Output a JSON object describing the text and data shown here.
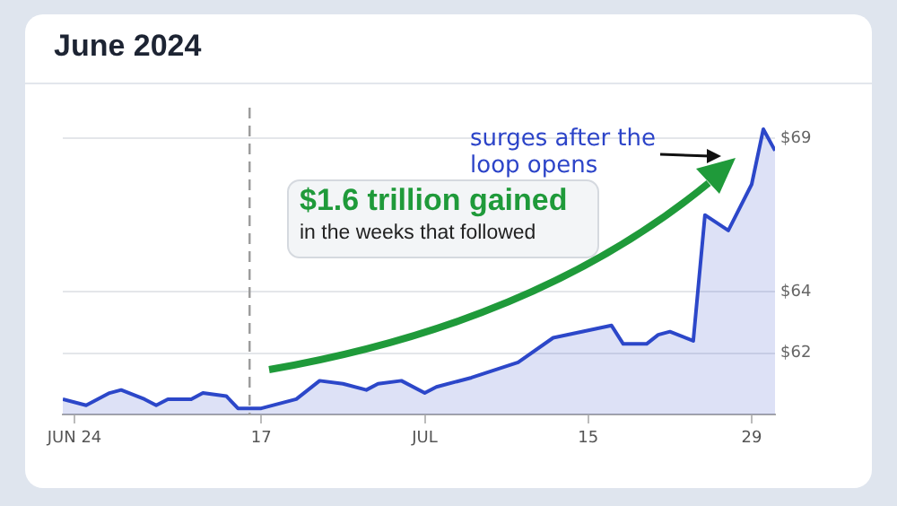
{
  "chart_data": {
    "type": "area",
    "title": "June 2024",
    "x": [
      "2024-05-31",
      "2024-06-02",
      "2024-06-04",
      "2024-06-05",
      "2024-06-07",
      "2024-06-08",
      "2024-06-09",
      "2024-06-11",
      "2024-06-12",
      "2024-06-14",
      "2024-06-15",
      "2024-06-17",
      "2024-06-20",
      "2024-06-22",
      "2024-06-24",
      "2024-06-26",
      "2024-06-27",
      "2024-06-29",
      "2024-07-01",
      "2024-07-02",
      "2024-07-05",
      "2024-07-09",
      "2024-07-12",
      "2024-07-17",
      "2024-07-18",
      "2024-07-20",
      "2024-07-21",
      "2024-07-22",
      "2024-07-24",
      "2024-07-25",
      "2024-07-27",
      "2024-07-29",
      "2024-07-30",
      "2024-07-31"
    ],
    "series": [
      {
        "color": "#2c47c9",
        "values": [
          60.5,
          60.3,
          60.7,
          60.8,
          60.5,
          60.3,
          60.5,
          60.5,
          60.7,
          60.6,
          60.2,
          60.2,
          60.5,
          61.1,
          61.0,
          60.8,
          61.0,
          61.1,
          60.7,
          60.9,
          61.2,
          61.7,
          62.5,
          62.9,
          62.3,
          62.3,
          62.6,
          62.7,
          62.4,
          66.5,
          66.0,
          67.5,
          69.3,
          68.6
        ]
      }
    ],
    "xlim": [
      "2024-05-31",
      "2024-07-31"
    ],
    "xticks": [
      {
        "value": "2024-06-01",
        "label": "JUN 24"
      },
      {
        "value": "2024-06-17",
        "label": "17"
      },
      {
        "value": "2024-07-01",
        "label": "JUL"
      },
      {
        "value": "2024-07-15",
        "label": "15"
      },
      {
        "value": "2024-07-29",
        "label": "29"
      }
    ],
    "ylim": [
      60,
      70
    ],
    "yticks": [
      {
        "value": 62,
        "label": "$62"
      },
      {
        "value": 64,
        "label": "$64"
      },
      {
        "value": 69,
        "label": "$69"
      }
    ],
    "grid": "y",
    "legend": false,
    "marker": "none",
    "ref_lines": [
      {
        "axis": "x",
        "value": "2024-06-16",
        "color": "#9a9a9a",
        "line_style": "dashed"
      }
    ],
    "annotations": [
      "surges after the loop opens",
      "$1.6 trillion gained",
      "in the weeks that followed"
    ]
  }
}
